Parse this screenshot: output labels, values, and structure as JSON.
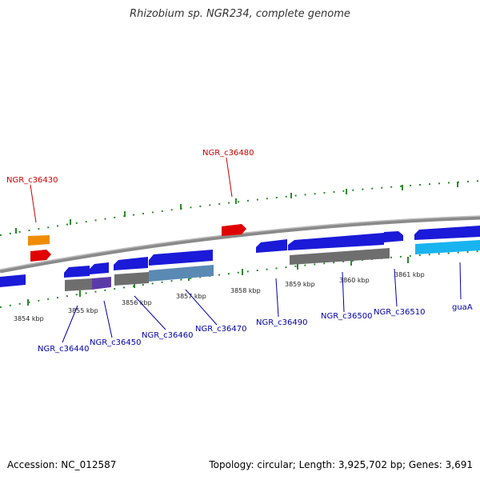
{
  "title": "Rhizobium sp. NGR234, complete genome",
  "footer": {
    "accession": "Accession: NC_012587",
    "topology": "Topology: circular; Length: 3,925,702 bp; Genes: 3,691"
  },
  "colors": {
    "background": "#ffffff",
    "backbone": "#8a8a8a",
    "tick": "#2a8a2a",
    "gene_forward_blue": "#1a1ad8",
    "gene_highlight_red": "#e00000",
    "gene_orange": "#f08c00",
    "gene_cyan": "#19b4f0",
    "gene_gray": "#6e6e6e",
    "gene_steelblue": "#5a8ab4",
    "gene_purple": "#5a3aa8",
    "label_blue": "#0000aa",
    "label_red": "#cc0000"
  },
  "kbp_labels": [
    {
      "id": "k3854",
      "text": "3854 kbp"
    },
    {
      "id": "k3855",
      "text": "3855 kbp"
    },
    {
      "id": "k3856",
      "text": "3856 kbp"
    },
    {
      "id": "k3857",
      "text": "3857 kbp"
    },
    {
      "id": "k3858",
      "text": "3858 kbp"
    },
    {
      "id": "k3859",
      "text": "3859 kbp"
    },
    {
      "id": "k3860",
      "text": "3860 kbp"
    },
    {
      "id": "k3861",
      "text": "3861 kbp"
    }
  ],
  "gene_labels": [
    {
      "id": "c36430",
      "text": "NGR_c36430",
      "color": "red"
    },
    {
      "id": "c36480",
      "text": "NGR_c36480",
      "color": "red"
    },
    {
      "id": "c36440",
      "text": "NGR_c36440",
      "color": "blue"
    },
    {
      "id": "c36450",
      "text": "NGR_c36450",
      "color": "blue"
    },
    {
      "id": "c36460",
      "text": "NGR_c36460",
      "color": "blue"
    },
    {
      "id": "c36470",
      "text": "NGR_c36470",
      "color": "blue"
    },
    {
      "id": "c36490",
      "text": "NGR_c36490",
      "color": "blue"
    },
    {
      "id": "c36500",
      "text": "NGR_c36500",
      "color": "blue"
    },
    {
      "id": "c36510",
      "text": "NGR_c36510",
      "color": "blue"
    },
    {
      "id": "guaA",
      "text": "guaA",
      "color": "blue"
    }
  ]
}
